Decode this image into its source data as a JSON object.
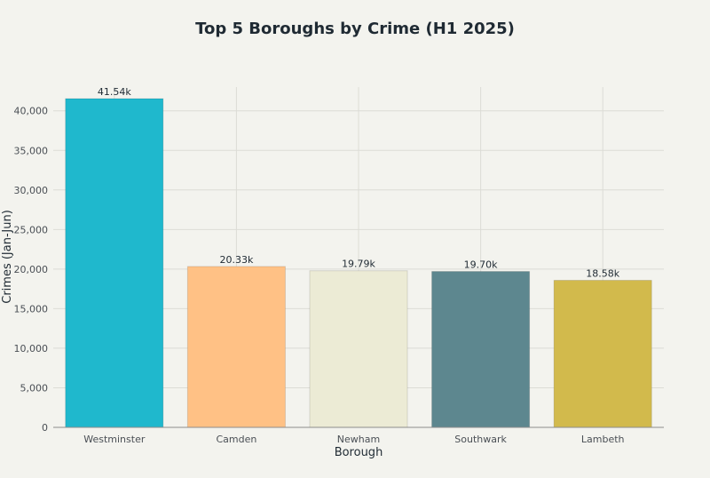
{
  "chart_data": {
    "type": "bar",
    "title": "Top 5 Boroughs by Crime (H1 2025)",
    "xlabel": "Borough",
    "ylabel": "Crimes (Jan-Jun)",
    "categories": [
      "Westminster",
      "Camden",
      "Newham",
      "Southwark",
      "Lambeth"
    ],
    "values": [
      41540,
      20330,
      19790,
      19700,
      18580
    ],
    "data_labels": [
      "41.54k",
      "20.33k",
      "19.79k",
      "19.70k",
      "18.58k"
    ],
    "colors": [
      "#1fb8cd",
      "#ffc185",
      "#eceBd5",
      "#5d878f",
      "#d2ba4c"
    ],
    "yticks": [
      0,
      5000,
      10000,
      15000,
      20000,
      25000,
      30000,
      35000,
      40000
    ],
    "ytick_labels": [
      "0",
      "5,000",
      "10,000",
      "15,000",
      "20,000",
      "25,000",
      "30,000",
      "35,000",
      "40,000"
    ],
    "ylim": [
      0,
      43000
    ],
    "grid": true
  }
}
